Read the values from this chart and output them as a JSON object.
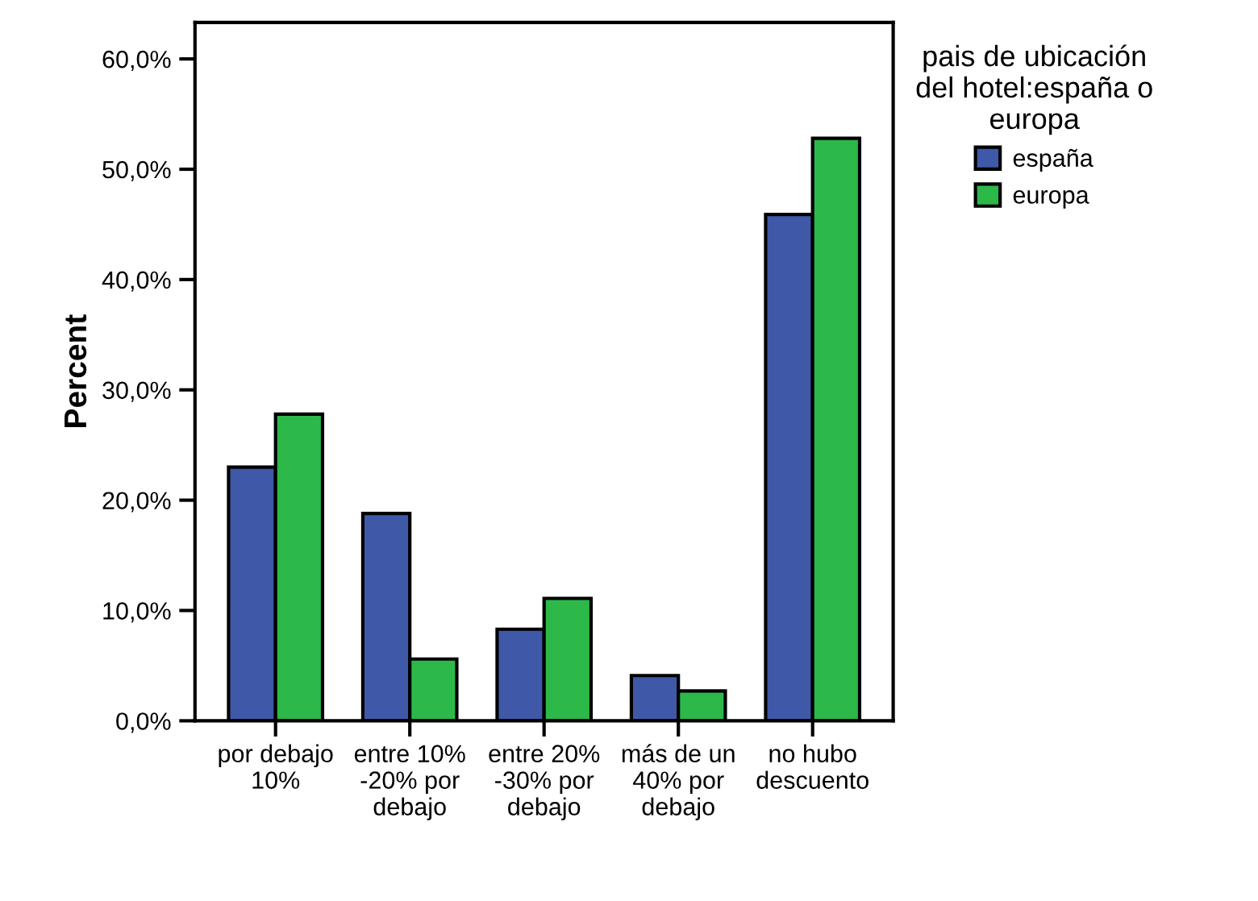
{
  "chart_data": {
    "type": "bar",
    "ylabel": "Percent",
    "legend_title": "pais de ubicación\ndel hotel:españa o\neuropa",
    "legend": "top right",
    "categories": [
      "por debajo\n10%",
      "entre 10%\n-20% por\ndebajo",
      "entre 20%\n-30% por\ndebajo",
      "más de un\n40% por\ndebajo",
      "no hubo\ndescuento"
    ],
    "series": [
      {
        "name": "españa",
        "color": "#3f59a8",
        "values": [
          23.0,
          18.8,
          8.3,
          4.1,
          45.9
        ]
      },
      {
        "name": "europa",
        "color": "#2db84a",
        "values": [
          27.8,
          5.6,
          11.1,
          2.7,
          52.8
        ]
      }
    ],
    "ylim": [
      0,
      63.3
    ],
    "yticks": [
      {
        "value": 0,
        "label": "0,0%"
      },
      {
        "value": 10,
        "label": "10,0%"
      },
      {
        "value": 20,
        "label": "20,0%"
      },
      {
        "value": 30,
        "label": "30,0%"
      },
      {
        "value": 40,
        "label": "40,0%"
      },
      {
        "value": 50,
        "label": "50,0%"
      },
      {
        "value": 60,
        "label": "60,0%"
      }
    ],
    "grid": false
  }
}
